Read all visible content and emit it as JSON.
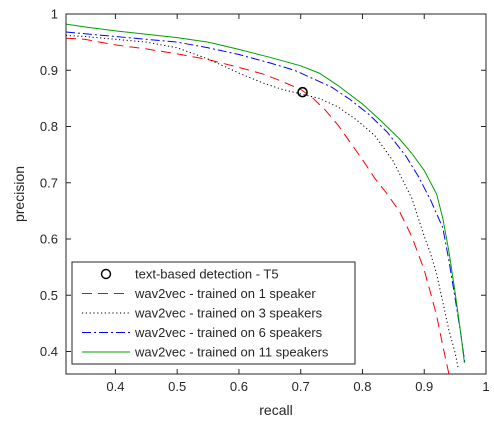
{
  "chart_data": {
    "type": "line",
    "xlabel": "recall",
    "ylabel": "precision",
    "xlim": [
      0.32,
      1.0
    ],
    "ylim": [
      0.36,
      1.0
    ],
    "xticks": [
      "0.4",
      "0.5",
      "0.6",
      "0.7",
      "0.8",
      "0.9",
      "1"
    ],
    "yticks": [
      "0.4",
      "0.5",
      "0.6",
      "0.7",
      "0.8",
      "0.9",
      "1"
    ],
    "grid": false,
    "legend_position": "bottom-left",
    "point": {
      "name": "text-based detection - T5",
      "x": 0.703,
      "y": 0.861,
      "color": "#000000"
    },
    "series": [
      {
        "name": "wav2vec - trained on 1 speaker",
        "color": "#ff0000",
        "style": "dashed",
        "x": [
          0.32,
          0.35,
          0.4,
          0.45,
          0.5,
          0.55,
          0.6,
          0.64,
          0.67,
          0.7,
          0.72,
          0.74,
          0.76,
          0.78,
          0.8,
          0.82,
          0.84,
          0.86,
          0.88,
          0.9,
          0.91,
          0.92,
          0.93,
          0.94
        ],
        "y": [
          0.957,
          0.955,
          0.945,
          0.938,
          0.929,
          0.919,
          0.905,
          0.893,
          0.88,
          0.866,
          0.85,
          0.829,
          0.803,
          0.772,
          0.741,
          0.708,
          0.68,
          0.649,
          0.604,
          0.545,
          0.505,
          0.464,
          0.41,
          0.36
        ]
      },
      {
        "name": "wav2vec - trained on 3 speakers",
        "color": "#000000",
        "style": "dotted",
        "x": [
          0.32,
          0.35,
          0.4,
          0.45,
          0.5,
          0.55,
          0.6,
          0.64,
          0.67,
          0.7,
          0.73,
          0.76,
          0.79,
          0.82,
          0.85,
          0.88,
          0.9,
          0.91,
          0.92,
          0.93,
          0.94,
          0.95,
          0.955
        ],
        "y": [
          0.962,
          0.96,
          0.955,
          0.95,
          0.94,
          0.92,
          0.895,
          0.877,
          0.866,
          0.858,
          0.85,
          0.835,
          0.812,
          0.784,
          0.738,
          0.672,
          0.605,
          0.575,
          0.538,
          0.488,
          0.438,
          0.398,
          0.37
        ]
      },
      {
        "name": "wav2vec - trained on 6 speakers",
        "color": "#0000ff",
        "style": "dashdot",
        "x": [
          0.32,
          0.35,
          0.4,
          0.45,
          0.5,
          0.55,
          0.6,
          0.65,
          0.69,
          0.72,
          0.75,
          0.78,
          0.81,
          0.84,
          0.87,
          0.89,
          0.91,
          0.93,
          0.94,
          0.95,
          0.96,
          0.966
        ],
        "y": [
          0.968,
          0.965,
          0.96,
          0.955,
          0.95,
          0.94,
          0.928,
          0.913,
          0.9,
          0.885,
          0.87,
          0.848,
          0.822,
          0.79,
          0.748,
          0.712,
          0.67,
          0.62,
          0.562,
          0.495,
          0.425,
          0.378
        ]
      },
      {
        "name": "wav2vec - trained on 11 speakers",
        "color": "#00a000",
        "style": "solid",
        "x": [
          0.32,
          0.35,
          0.4,
          0.45,
          0.5,
          0.55,
          0.6,
          0.65,
          0.7,
          0.73,
          0.76,
          0.8,
          0.83,
          0.86,
          0.88,
          0.9,
          0.92,
          0.93,
          0.94,
          0.95,
          0.96,
          0.965
        ],
        "y": [
          0.982,
          0.977,
          0.97,
          0.964,
          0.958,
          0.95,
          0.937,
          0.923,
          0.908,
          0.895,
          0.873,
          0.84,
          0.81,
          0.778,
          0.752,
          0.722,
          0.68,
          0.637,
          0.578,
          0.505,
          0.425,
          0.38
        ]
      }
    ]
  }
}
